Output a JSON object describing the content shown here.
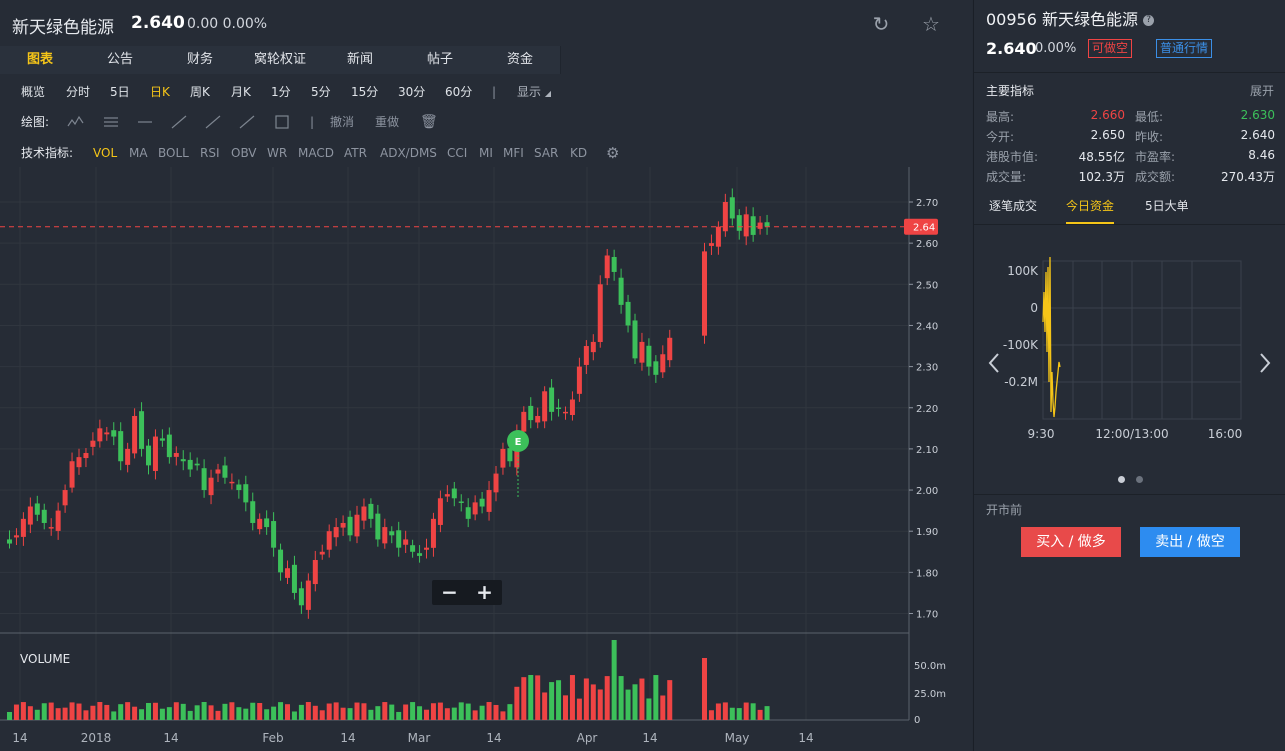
{
  "header": {
    "name": "新天绿色能源",
    "price": "2.640",
    "change": "0.00 0.00%"
  },
  "tabs": [
    "图表",
    "公告",
    "财务",
    "窝轮权证",
    "新闻",
    "帖子",
    "资金"
  ],
  "periods": [
    "概览",
    "分时",
    "5日",
    "日K",
    "周K",
    "月K",
    "1分",
    "5分",
    "15分",
    "30分",
    "60分"
  ],
  "display_label": "显示",
  "draw": {
    "label": "绘图:",
    "undo": "撤消",
    "redo": "重做"
  },
  "indicators": {
    "label": "技术指标:",
    "items": [
      "VOL",
      "MA",
      "BOLL",
      "RSI",
      "OBV",
      "WR",
      "MACD",
      "ATR",
      "ADX/DMS",
      "CCI",
      "MI",
      "MFI",
      "SAR",
      "KD"
    ]
  },
  "colors": {
    "up": "#ef4444",
    "down": "#3cc05a",
    "accent": "#f5c518"
  },
  "chart_data": {
    "type": "candlestick",
    "price_ticks": [
      "2.70",
      "2.60",
      "2.50",
      "2.40",
      "2.30",
      "2.20",
      "2.10",
      "2.00",
      "1.90",
      "1.80",
      "1.70"
    ],
    "last_price_tag": "2.64",
    "volume_label": "VOLUME",
    "volume_ticks": [
      "50.0m",
      "25.0m",
      "0"
    ],
    "x_labels": [
      "14",
      "2018",
      "14",
      "Feb",
      "14",
      "Mar",
      "14",
      "Apr",
      "14",
      "May",
      "14"
    ],
    "event_marker": "E",
    "closes": [
      1.87,
      1.89,
      1.93,
      1.96,
      1.94,
      1.92,
      1.91,
      1.95,
      2.0,
      2.07,
      2.08,
      2.09,
      2.12,
      2.15,
      2.14,
      2.13,
      2.07,
      2.1,
      2.18,
      2.1,
      2.06,
      2.13,
      2.12,
      2.08,
      2.09,
      2.07,
      2.05,
      2.06,
      2.0,
      2.03,
      2.05,
      2.03,
      2.02,
      2.0,
      1.97,
      1.92,
      1.93,
      1.91,
      1.86,
      1.8,
      1.81,
      1.75,
      1.72,
      1.78,
      1.83,
      1.85,
      1.9,
      1.91,
      1.92,
      1.89,
      1.94,
      1.96,
      1.93,
      1.88,
      1.91,
      1.89,
      1.86,
      1.88,
      1.85,
      1.84,
      1.86,
      1.93,
      1.98,
      1.99,
      1.98,
      1.97,
      1.93,
      1.97,
      1.96,
      2.0,
      2.04,
      2.1,
      2.07,
      2.14,
      2.19,
      2.17,
      2.18,
      2.24,
      2.19,
      2.2,
      2.19,
      2.22,
      2.3,
      2.35,
      2.36,
      2.5,
      2.57,
      2.53,
      2.45,
      2.4,
      2.32,
      2.36,
      2.3,
      2.28,
      2.33,
      2.37,
      null,
      null,
      null,
      null,
      2.58,
      2.6,
      2.64,
      2.7,
      2.66,
      2.63,
      2.67,
      2.62,
      2.65,
      2.64
    ]
  },
  "right": {
    "code": "00956 新天绿色能源",
    "price": "2.640",
    "change": "0.00%",
    "badge_short": "可做空",
    "badge_quote": "普通行情",
    "section_title": "主要指标",
    "expand": "展开",
    "metrics": [
      {
        "k": "最高:",
        "v": "2.660",
        "color": "#ef4444"
      },
      {
        "k": "最低:",
        "v": "2.630",
        "color": "#3cc05a"
      },
      {
        "k": "今开:",
        "v": "2.650",
        "color": "#e6e9ee"
      },
      {
        "k": "昨收:",
        "v": "2.640",
        "color": "#e6e9ee"
      },
      {
        "k": "港股市值:",
        "v": "48.55亿",
        "color": "#e6e9ee"
      },
      {
        "k": "市盈率:",
        "v": "8.46",
        "color": "#e6e9ee"
      },
      {
        "k": "成交量:",
        "v": "102.3万",
        "color": "#e6e9ee"
      },
      {
        "k": "成交额:",
        "v": "270.43万",
        "color": "#e6e9ee"
      }
    ],
    "tabs": [
      "逐笔成交",
      "今日资金",
      "5日大单"
    ],
    "mini_chart": {
      "y_ticks": [
        "100K",
        "0",
        "-100K",
        "-0.2M"
      ],
      "x_ticks": [
        "9:30",
        "12:00/13:00",
        "16:00"
      ]
    },
    "status": "开市前",
    "buy_label": "买入 / 做多",
    "sell_label": "卖出 / 做空"
  }
}
